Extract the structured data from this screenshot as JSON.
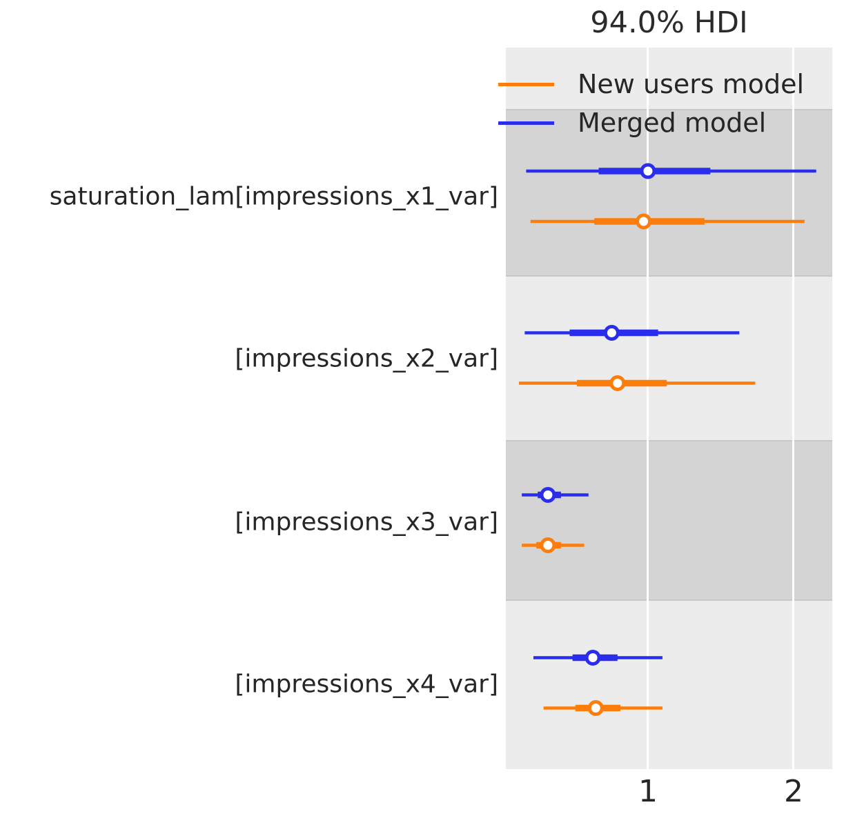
{
  "chart_data": {
    "type": "forest",
    "title": "94.0% HDI",
    "hdi_prob": 0.94,
    "xlabel": "",
    "x_ticks": [
      1,
      2
    ],
    "x_tick_labels": [
      "1",
      "2"
    ],
    "xlim": [
      0.02,
      2.271
    ],
    "grid": "white vertical gridlines at x ticks, shown over alternating gray row bands",
    "legend_position": "upper left inside plot",
    "legend": [
      {
        "label": "New users model",
        "color": "#fc7d0b"
      },
      {
        "label": "Merged model",
        "color": "#2a2eec"
      }
    ],
    "rows": [
      {
        "label": "saturation_lam[impressions_x1_var]",
        "shaded_band": true,
        "series": [
          {
            "model": "Merged model",
            "color": "#2a2eec",
            "hdi_94": [
              0.16,
              2.16
            ],
            "interquartile": [
              0.66,
              1.43
            ],
            "median": 1.0
          },
          {
            "model": "New users model",
            "color": "#fc7d0b",
            "hdi_94": [
              0.19,
              2.08
            ],
            "interquartile": [
              0.63,
              1.39
            ],
            "median": 0.97
          }
        ]
      },
      {
        "label": "[impressions_x2_var]",
        "shaded_band": false,
        "series": [
          {
            "model": "Merged model",
            "color": "#2a2eec",
            "hdi_94": [
              0.15,
              1.63
            ],
            "interquartile": [
              0.46,
              1.07
            ],
            "median": 0.75
          },
          {
            "model": "New users model",
            "color": "#fc7d0b",
            "hdi_94": [
              0.11,
              1.74
            ],
            "interquartile": [
              0.51,
              1.13
            ],
            "median": 0.79
          }
        ]
      },
      {
        "label": "[impressions_x3_var]",
        "shaded_band": true,
        "series": [
          {
            "model": "Merged model",
            "color": "#2a2eec",
            "hdi_94": [
              0.13,
              0.59
            ],
            "interquartile": [
              0.24,
              0.4
            ],
            "median": 0.31
          },
          {
            "model": "New users model",
            "color": "#fc7d0b",
            "hdi_94": [
              0.13,
              0.56
            ],
            "interquartile": [
              0.23,
              0.4
            ],
            "median": 0.31
          }
        ]
      },
      {
        "label": "[impressions_x4_var]",
        "shaded_band": false,
        "series": [
          {
            "model": "Merged model",
            "color": "#2a2eec",
            "hdi_94": [
              0.21,
              1.1
            ],
            "interquartile": [
              0.48,
              0.79
            ],
            "median": 0.62
          },
          {
            "model": "New users model",
            "color": "#fc7d0b",
            "hdi_94": [
              0.28,
              1.1
            ],
            "interquartile": [
              0.5,
              0.81
            ],
            "median": 0.64
          }
        ]
      }
    ],
    "colors": {
      "blue_model": "#2a2eec",
      "orange_model": "#fc7d0b",
      "plot_bg": "#ececec",
      "shaded_band": "#d4d4d4",
      "gridline": "#ffffff",
      "text": "#262626",
      "median_dot_fill": "#ffffff"
    }
  }
}
